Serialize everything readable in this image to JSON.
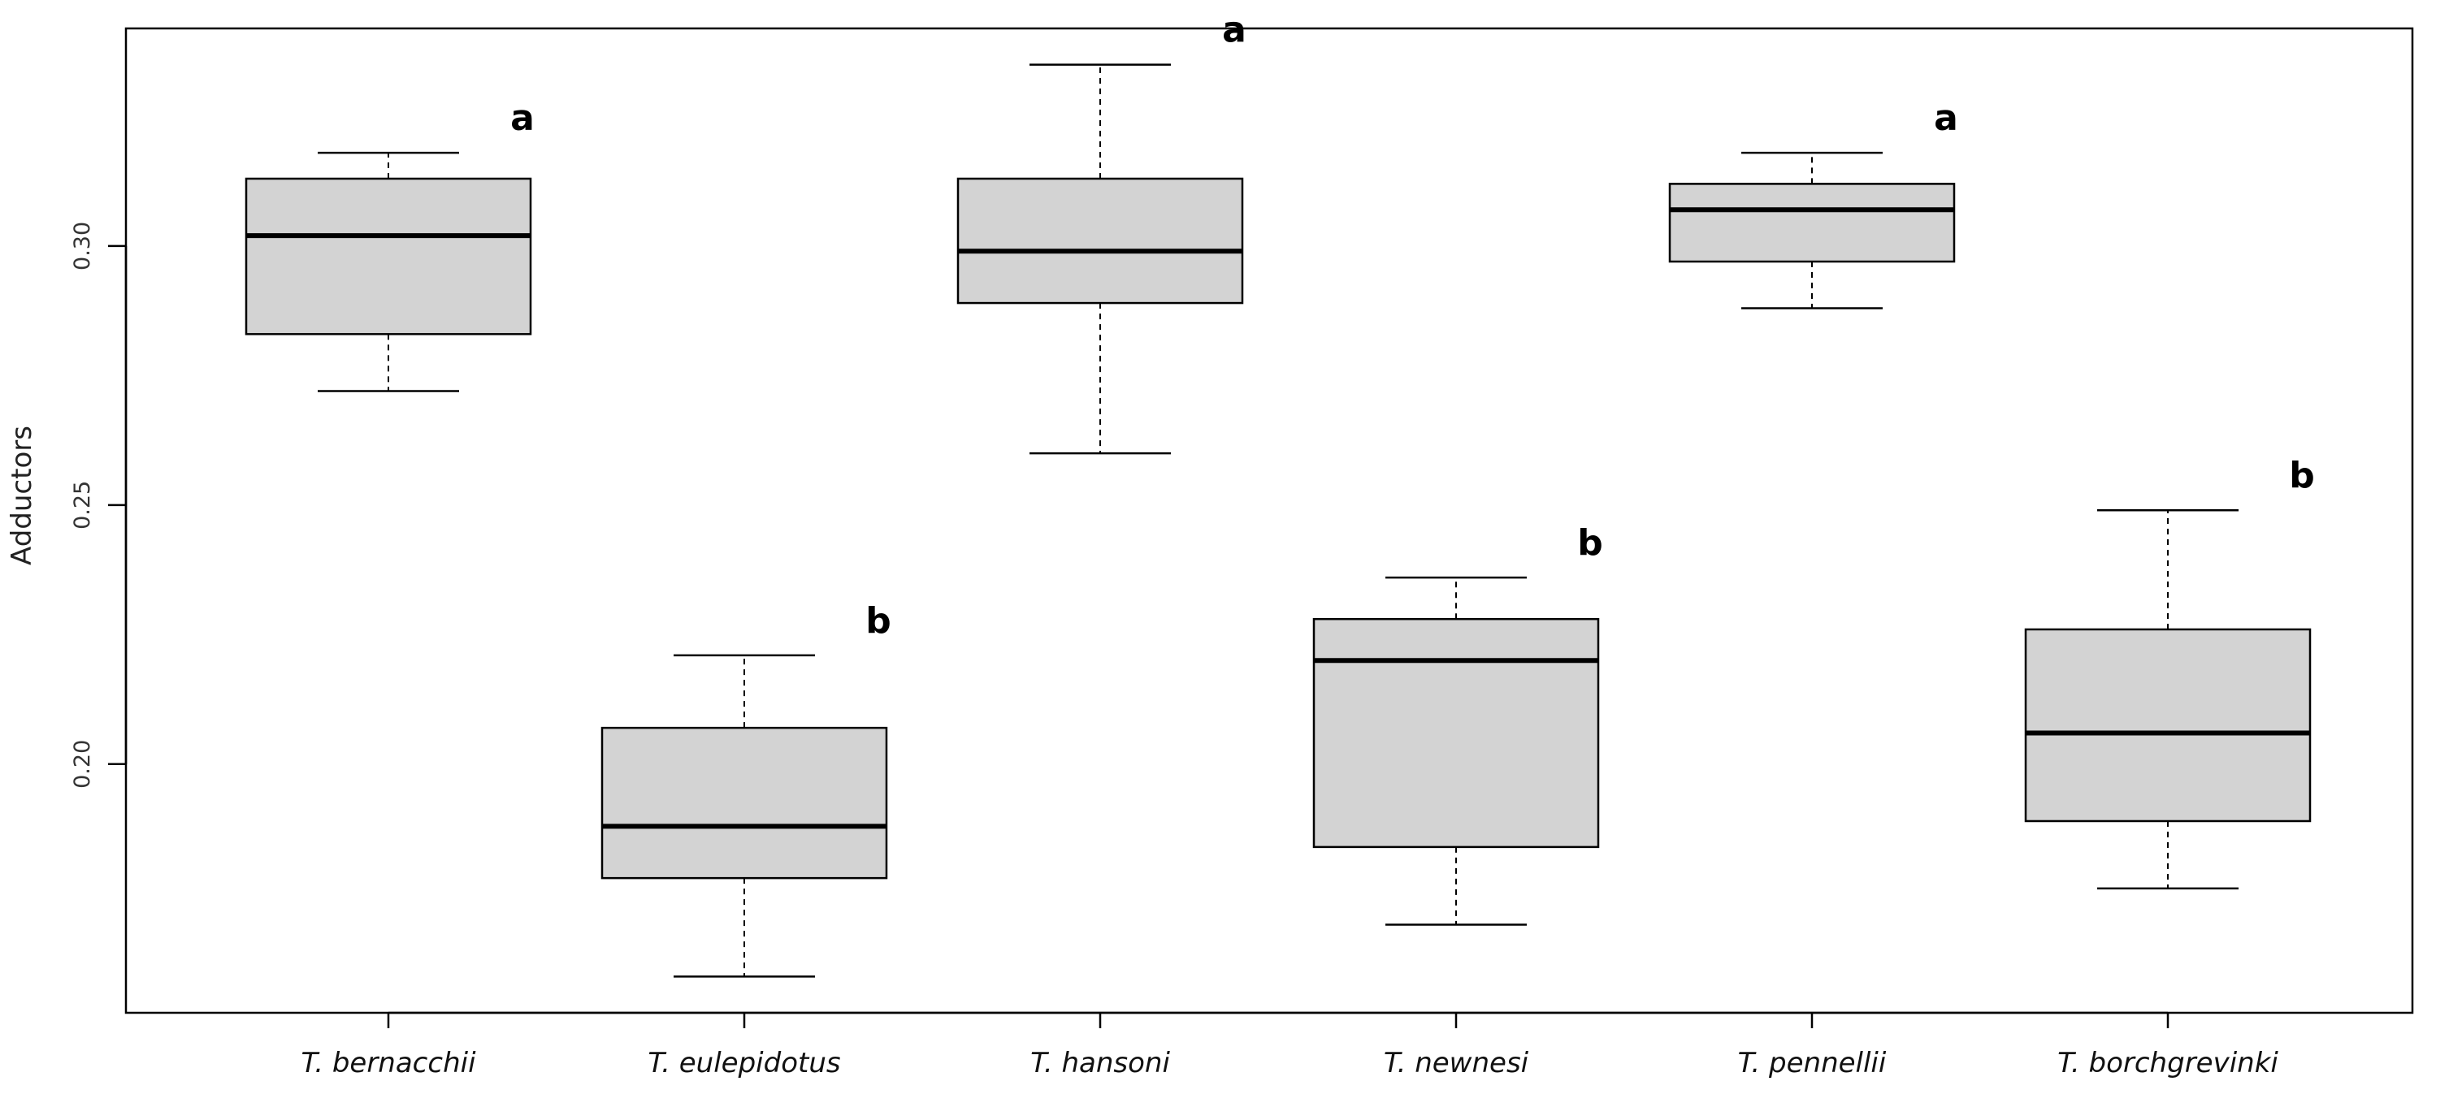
{
  "chart_data": {
    "type": "box",
    "title": "",
    "xlabel": "",
    "ylabel": "Adductors",
    "ylim": [
      0.152,
      0.342
    ],
    "yticks": [
      "0.20",
      "0.25",
      "0.30"
    ],
    "grid": false,
    "colors": {
      "box_fill": "#d3d3d3",
      "stroke": "#000000"
    },
    "categories": [
      "T. bernacchii",
      "T. eulepidotus",
      "T. hansoni",
      "T. newnesi",
      "T. pennellii",
      "T. borchgrevinki"
    ],
    "boxes": [
      {
        "whisker_low": 0.272,
        "q1": 0.283,
        "median": 0.302,
        "q3": 0.313,
        "whisker_high": 0.318,
        "letter": "a"
      },
      {
        "whisker_low": 0.159,
        "q1": 0.178,
        "median": 0.188,
        "q3": 0.207,
        "whisker_high": 0.221,
        "letter": "b"
      },
      {
        "whisker_low": 0.26,
        "q1": 0.289,
        "median": 0.299,
        "q3": 0.313,
        "whisker_high": 0.335,
        "letter": "a"
      },
      {
        "whisker_low": 0.169,
        "q1": 0.184,
        "median": 0.22,
        "q3": 0.228,
        "whisker_high": 0.236,
        "letter": "b"
      },
      {
        "whisker_low": 0.288,
        "q1": 0.297,
        "median": 0.307,
        "q3": 0.312,
        "whisker_high": 0.318,
        "letter": "a"
      },
      {
        "whisker_low": 0.176,
        "q1": 0.189,
        "median": 0.206,
        "q3": 0.226,
        "whisker_high": 0.249,
        "letter": "b"
      }
    ]
  }
}
